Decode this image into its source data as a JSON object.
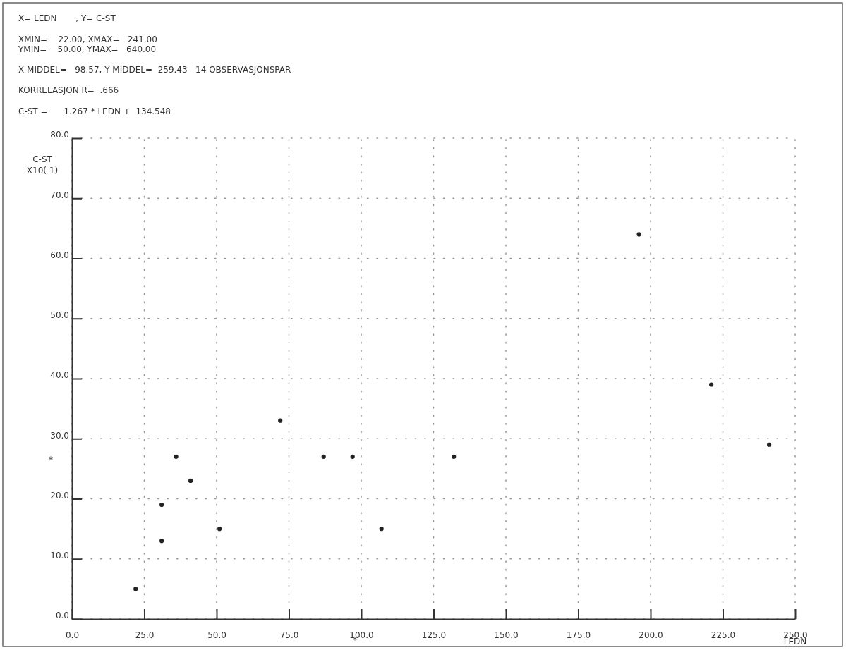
{
  "chart_data": {
    "type": "scatter",
    "title": "X= LEDN       , Y= C-ST",
    "annotations": [
      "XMIN=    22.00, XMAX=   241.00",
      "YMIN=    50.00, YMAX=   640.00",
      "X MIDDEL=   98.57, Y MIDDEL=  259.43   14 OBSERVASJONSPAR",
      "KORRELASJON R=  .666",
      "C-ST =      1.267 * LEDN +  134.548",
      "*",
      "*"
    ],
    "xlabel": "LEDN",
    "ylabel": "C-ST\nX10( 1)",
    "x": [
      22,
      31,
      31,
      36,
      41,
      51,
      72,
      87,
      97,
      107,
      132,
      196,
      221,
      241
    ],
    "values": [
      5,
      13,
      19,
      27,
      23,
      15,
      33,
      27,
      27,
      15,
      27,
      64,
      39,
      29
    ],
    "color": "#222222",
    "marker": "circle",
    "xlim": [
      0,
      250
    ],
    "xticks": [
      {
        "value": 0,
        "label": "0.0"
      },
      {
        "value": 25,
        "label": "25.0"
      },
      {
        "value": 50,
        "label": "50.0"
      },
      {
        "value": 75,
        "label": "75.0"
      },
      {
        "value": 100,
        "label": "100.0"
      },
      {
        "value": 125,
        "label": "125.0"
      },
      {
        "value": 150,
        "label": "150.0"
      },
      {
        "value": 175,
        "label": "175.0"
      },
      {
        "value": 200,
        "label": "200.0"
      },
      {
        "value": 225,
        "label": "225.0"
      },
      {
        "value": 250,
        "label": "250.0"
      }
    ],
    "ylim": [
      0,
      80
    ],
    "yticks": [
      {
        "value": 0,
        "label": "0.0"
      },
      {
        "value": 10,
        "label": "10.0"
      },
      {
        "value": 20,
        "label": "20.0"
      },
      {
        "value": 30,
        "label": "30.0"
      },
      {
        "value": 40,
        "label": "40.0"
      },
      {
        "value": 50,
        "label": "50.0"
      },
      {
        "value": 60,
        "label": "60.0"
      },
      {
        "value": 70,
        "label": "70.0"
      },
      {
        "value": 80,
        "label": "80.0"
      }
    ],
    "grid": true
  }
}
